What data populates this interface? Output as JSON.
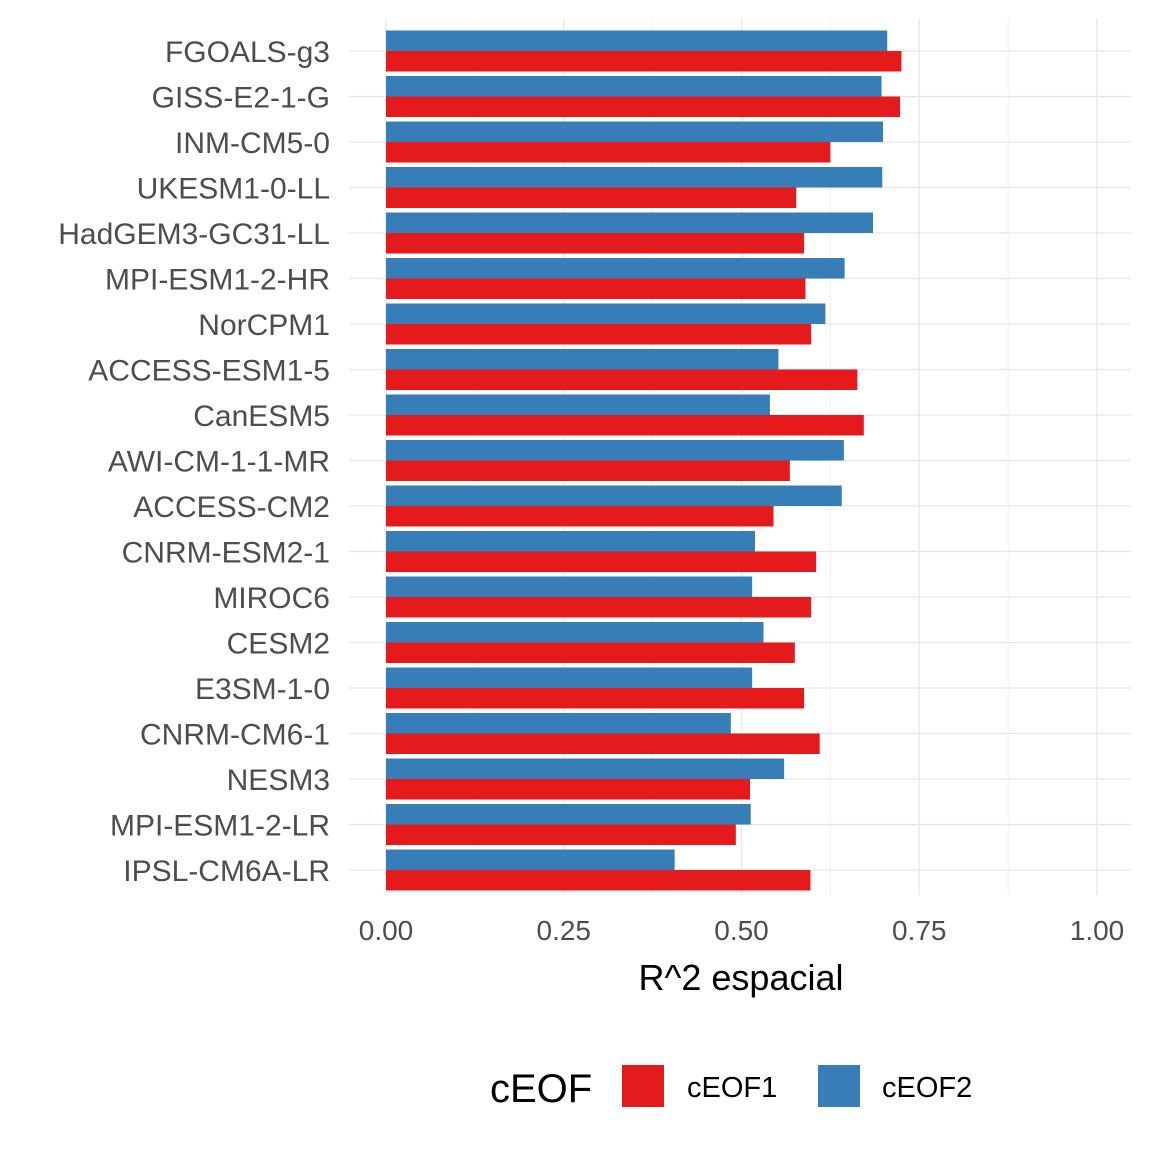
{
  "chart_data": {
    "type": "bar",
    "orientation": "horizontal",
    "categories": [
      "FGOALS-g3",
      "GISS-E2-1-G",
      "INM-CM5-0",
      "UKESM1-0-LL",
      "HadGEM3-GC31-LL",
      "MPI-ESM1-2-HR",
      "NorCPM1",
      "ACCESS-ESM1-5",
      "CanESM5",
      "AWI-CM-1-1-MR",
      "ACCESS-CM2",
      "CNRM-ESM2-1",
      "MIROC6",
      "CESM2",
      "E3SM-1-0",
      "CNRM-CM6-1",
      "NESM3",
      "MPI-ESM1-2-LR",
      "IPSL-CM6A-LR"
    ],
    "series": [
      {
        "name": "cEOF1",
        "color": "#E41A1C",
        "values": [
          0.725,
          0.723,
          0.625,
          0.577,
          0.588,
          0.59,
          0.598,
          0.663,
          0.672,
          0.568,
          0.545,
          0.605,
          0.598,
          0.575,
          0.588,
          0.61,
          0.512,
          0.492,
          0.597
        ]
      },
      {
        "name": "cEOF2",
        "color": "#377EB8",
        "values": [
          0.705,
          0.697,
          0.699,
          0.698,
          0.685,
          0.645,
          0.618,
          0.552,
          0.54,
          0.644,
          0.641,
          0.519,
          0.515,
          0.531,
          0.515,
          0.485,
          0.56,
          0.513,
          0.406
        ]
      }
    ],
    "xlabel": "R^2 espacial",
    "xlim": [
      0,
      1.05
    ],
    "xticks": [
      "0.00",
      "0.25",
      "0.50",
      "0.75",
      "1.00"
    ],
    "grid": true,
    "legend": {
      "title": "cEOF",
      "position": "bottom",
      "items": [
        "cEOF1",
        "cEOF2"
      ]
    }
  }
}
